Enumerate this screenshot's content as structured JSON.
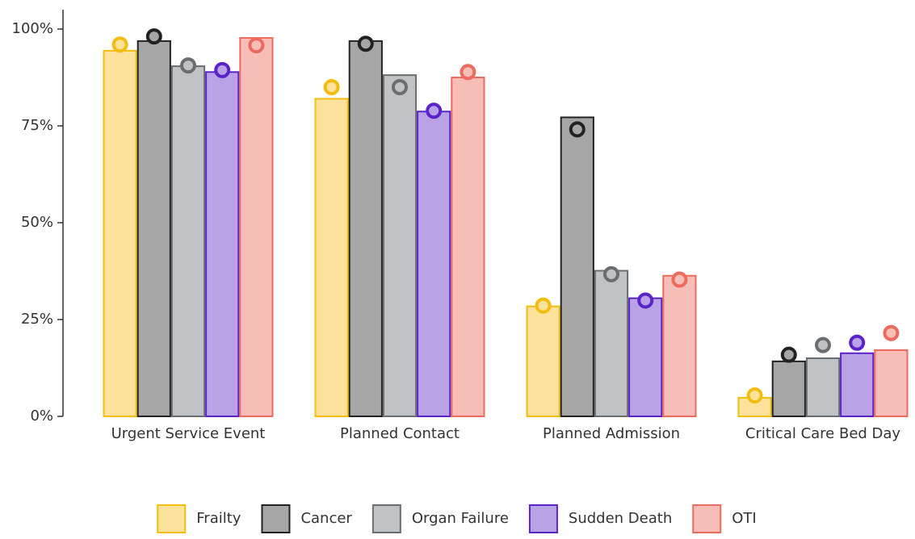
{
  "chart_data": {
    "type": "bar",
    "categories": [
      "Urgent Service Event",
      "Planned Contact",
      "Planned Admission",
      "Critical Care Bed Day"
    ],
    "ylim": [
      0,
      105
    ],
    "yticks": [
      {
        "value": 0,
        "label": "0%"
      },
      {
        "value": 25,
        "label": "25%"
      },
      {
        "value": 50,
        "label": "50%"
      },
      {
        "value": 75,
        "label": "75%"
      },
      {
        "value": 100,
        "label": "100%"
      }
    ],
    "series": [
      {
        "name": "Frailty",
        "color": "#fce29a",
        "stroke": "#f2bd10",
        "values": [
          94.4,
          82.0,
          28.4,
          4.8
        ],
        "point_values": [
          96.0,
          85.0,
          28.6,
          5.4
        ]
      },
      {
        "name": "Cancer",
        "color": "#a6a6a6",
        "stroke": "#222222",
        "values": [
          96.9,
          96.9,
          77.2,
          14.2
        ],
        "point_values": [
          98.1,
          96.2,
          74.1,
          15.9
        ]
      },
      {
        "name": "Organ Failure",
        "color": "#c0c3c6",
        "stroke": "#6b6e70",
        "values": [
          90.4,
          88.1,
          37.6,
          15.0
        ],
        "point_values": [
          90.6,
          85.0,
          36.7,
          18.4
        ]
      },
      {
        "name": "Sudden Death",
        "color": "#b9a3e6",
        "stroke": "#5a22c8",
        "values": [
          88.9,
          78.7,
          30.5,
          16.3
        ],
        "point_values": [
          89.4,
          78.9,
          29.9,
          19.0
        ]
      },
      {
        "name": "OTI",
        "color": "#f7bdb7",
        "stroke": "#ec6b5e",
        "values": [
          97.7,
          87.5,
          36.3,
          17.1
        ],
        "point_values": [
          95.8,
          88.9,
          35.3,
          21.5
        ]
      }
    ]
  }
}
